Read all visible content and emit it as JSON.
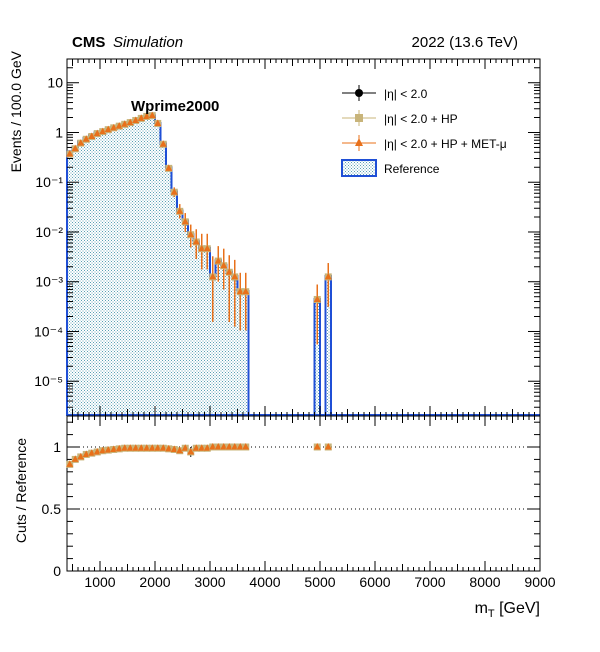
{
  "header": {
    "experiment": "CMS",
    "status": "Simulation",
    "run_info": "2022 (13.6 TeV)",
    "sample": "Wprime2000"
  },
  "legend": {
    "placement": "top-right",
    "entries": [
      {
        "label": "|η| < 2.0",
        "marker": "circle",
        "color": "#000000"
      },
      {
        "label": "|η| < 2.0 + HP",
        "marker": "square",
        "color": "#c8b47a"
      },
      {
        "label": "|η| < 2.0 + HP + MET-μ",
        "marker": "triangle",
        "color": "#e8701a"
      },
      {
        "label": "Reference",
        "marker": "box",
        "color": "#1f4fd6"
      }
    ]
  },
  "chart_data": [
    {
      "type": "histogram",
      "ylabel": "Events / 100.0 GeV",
      "y_scale": "log",
      "ylim": [
        2e-06,
        30
      ],
      "xlim": [
        400,
        9000
      ],
      "y_tick_labels": [
        "10⁻⁵",
        "10⁻⁴",
        "10⁻³",
        "10⁻²",
        "10⁻¹",
        "1",
        "10"
      ],
      "y_ticks": [
        1e-05,
        0.0001,
        0.001,
        0.01,
        0.1,
        1,
        10
      ],
      "reference": {
        "name": "Reference",
        "bin_width": 100,
        "x": [
          450,
          550,
          650,
          750,
          850,
          950,
          1050,
          1150,
          1250,
          1350,
          1450,
          1550,
          1650,
          1750,
          1850,
          1950,
          2050,
          2150,
          2250,
          2350,
          2450,
          2550,
          2650,
          2750,
          2850,
          2950,
          3050,
          3150,
          3250,
          3350,
          3450,
          3550,
          3650,
          4950,
          5150
        ],
        "y": [
          0.42,
          0.52,
          0.66,
          0.78,
          0.88,
          1.0,
          1.08,
          1.18,
          1.28,
          1.38,
          1.5,
          1.62,
          1.78,
          1.95,
          2.15,
          2.2,
          1.55,
          0.6,
          0.2,
          0.065,
          0.027,
          0.017,
          0.009,
          0.0065,
          0.0048,
          0.0048,
          0.0013,
          0.0027,
          0.0022,
          0.0016,
          0.0013,
          0.00065,
          0.00065,
          0.00045,
          0.0013
        ]
      },
      "cuts": {
        "x": [
          450,
          550,
          650,
          750,
          850,
          950,
          1050,
          1150,
          1250,
          1350,
          1450,
          1550,
          1650,
          1750,
          1850,
          1950,
          2050,
          2150,
          2250,
          2350,
          2450,
          2550,
          2650,
          2750,
          2850,
          2950,
          3050,
          3150,
          3250,
          3350,
          3450,
          3550,
          3650,
          4950,
          5150
        ],
        "y": [
          0.37,
          0.47,
          0.61,
          0.73,
          0.83,
          0.95,
          1.04,
          1.14,
          1.24,
          1.34,
          1.46,
          1.58,
          1.74,
          1.92,
          2.1,
          2.18,
          1.52,
          0.58,
          0.19,
          0.063,
          0.026,
          0.016,
          0.0088,
          0.0063,
          0.0046,
          0.0046,
          0.00125,
          0.0026,
          0.0021,
          0.00155,
          0.00125,
          0.00063,
          0.00063,
          0.00044,
          0.00125
        ],
        "err_low_factor": [
          1.08,
          1.07,
          1.06,
          1.06,
          1.05,
          1.05,
          1.05,
          1.05,
          1.05,
          1.05,
          1.05,
          1.05,
          1.05,
          1.05,
          1.05,
          1.05,
          1.06,
          1.1,
          1.15,
          1.25,
          1.4,
          1.6,
          1.8,
          2.2,
          2.6,
          2.6,
          8,
          2.6,
          3,
          10,
          10,
          6,
          6,
          8,
          4
        ],
        "err_high_factor": [
          1.08,
          1.07,
          1.06,
          1.06,
          1.05,
          1.05,
          1.05,
          1.05,
          1.05,
          1.05,
          1.05,
          1.05,
          1.05,
          1.05,
          1.05,
          1.05,
          1.06,
          1.1,
          1.15,
          1.25,
          1.4,
          1.5,
          1.6,
          1.8,
          2.0,
          2.0,
          2.6,
          2.0,
          2.2,
          2.2,
          2.2,
          2.4,
          2.4,
          2.0,
          1.9
        ]
      }
    },
    {
      "type": "scatter",
      "ylabel": "Cuts / Reference",
      "xlabel": "m",
      "xlabel_sub": "T",
      "xlabel_unit": " [GeV]",
      "xlim": [
        400,
        9000
      ],
      "ylim": [
        0,
        1.25
      ],
      "x_ticks": [
        1000,
        2000,
        3000,
        4000,
        5000,
        6000,
        7000,
        8000,
        9000
      ],
      "y_ticks": [
        0,
        0.5,
        1
      ],
      "y_tick_labels": [
        "0",
        "0.5",
        "1"
      ],
      "reference_lines": [
        0.5,
        1
      ],
      "x": [
        450,
        550,
        650,
        750,
        850,
        950,
        1050,
        1150,
        1250,
        1350,
        1450,
        1550,
        1650,
        1750,
        1850,
        1950,
        2050,
        2150,
        2250,
        2350,
        2450,
        2550,
        2650,
        2750,
        2850,
        2950,
        3050,
        3150,
        3250,
        3350,
        3450,
        3550,
        3650,
        4950,
        5150
      ],
      "y": [
        0.86,
        0.9,
        0.92,
        0.94,
        0.95,
        0.96,
        0.97,
        0.975,
        0.98,
        0.985,
        0.99,
        0.99,
        0.99,
        0.99,
        0.99,
        0.99,
        0.99,
        0.99,
        0.985,
        0.98,
        0.97,
        0.99,
        0.96,
        0.99,
        0.99,
        0.99,
        1.0,
        1.0,
        1.0,
        1.0,
        1.0,
        1.0,
        1.0,
        1.0,
        1.0
      ],
      "err": [
        0.02,
        0.018,
        0.016,
        0.014,
        0.012,
        0.01,
        0.01,
        0.01,
        0.01,
        0.01,
        0.01,
        0.01,
        0.01,
        0.01,
        0.01,
        0.01,
        0.01,
        0.01,
        0.012,
        0.015,
        0.02,
        0.02,
        0.04,
        0.02,
        0.02,
        0.02,
        0.01,
        0.01,
        0.01,
        0.01,
        0.01,
        0.01,
        0.01,
        0.01,
        0.01
      ]
    }
  ]
}
